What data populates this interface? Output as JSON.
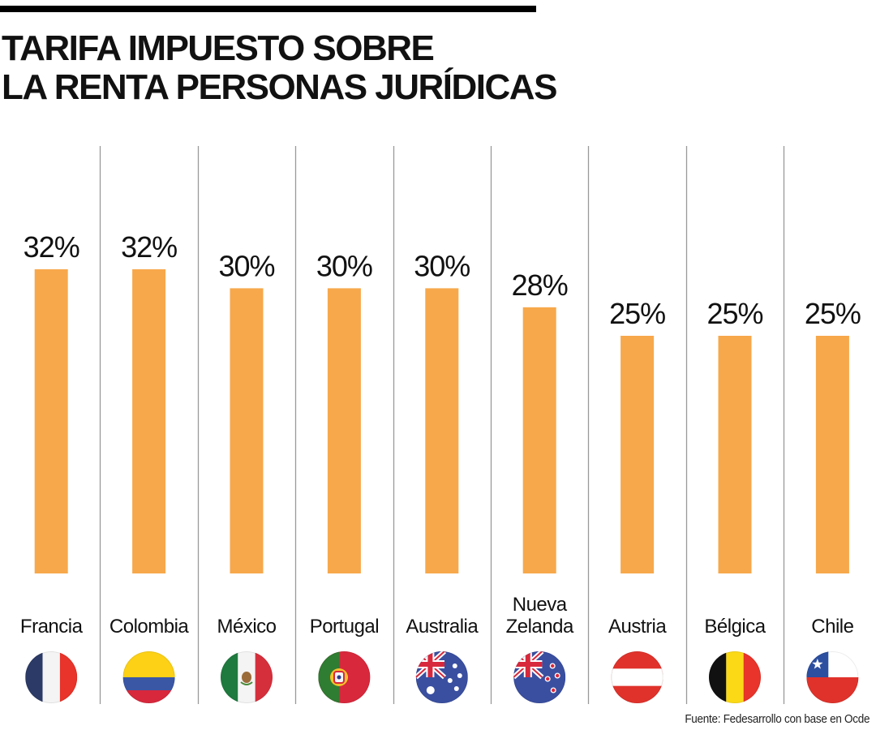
{
  "title": {
    "line1": "TARIFA IMPUESTO SOBRE",
    "line2": "LA RENTA PERSONAS JURÍDICAS"
  },
  "source": "Fuente:  Fedesarrollo con base en Ocde",
  "colors": {
    "bar": "#F7A84B",
    "divider": "#999999",
    "text": "#111111"
  },
  "chart_data": {
    "type": "bar",
    "title": "TARIFA IMPUESTO SOBRE LA RENTA PERSONAS JURÍDICAS",
    "xlabel": "",
    "ylabel": "",
    "ylim": [
      0,
      44
    ],
    "grid": false,
    "categories": [
      "Francia",
      "Colombia",
      "México",
      "Portugal",
      "Australia",
      "Nueva Zelanda",
      "Austria",
      "Bélgica",
      "Chile"
    ],
    "category_lines": [
      [
        "Francia"
      ],
      [
        "Colombia"
      ],
      [
        "México"
      ],
      [
        "Portugal"
      ],
      [
        "Australia"
      ],
      [
        "Nueva",
        "Zelanda"
      ],
      [
        "Austria"
      ],
      [
        "Bélgica"
      ],
      [
        "Chile"
      ]
    ],
    "values": [
      32,
      32,
      30,
      30,
      30,
      28,
      25,
      25,
      25
    ],
    "value_labels": [
      "32%",
      "32%",
      "30%",
      "30%",
      "30%",
      "28%",
      "25%",
      "25%",
      "25%"
    ],
    "flags": [
      "france-flag",
      "colombia-flag",
      "mexico-flag",
      "portugal-flag",
      "australia-flag",
      "new-zealand-flag",
      "austria-flag",
      "belgium-flag",
      "chile-flag"
    ]
  }
}
